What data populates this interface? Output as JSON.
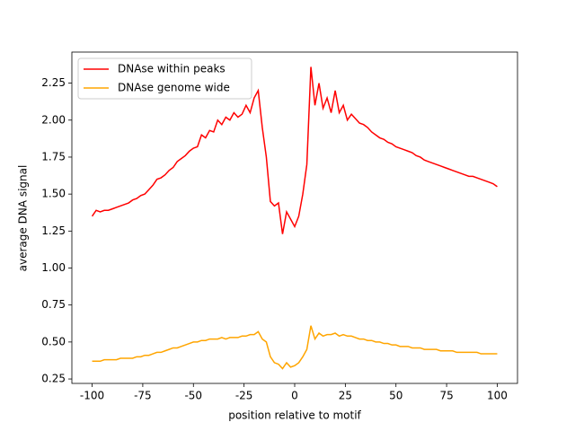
{
  "chart_data": {
    "type": "line",
    "xlabel": "position relative to motif",
    "ylabel": "average DNA signal",
    "x": [
      -100,
      -98,
      -96,
      -94,
      -92,
      -90,
      -88,
      -86,
      -84,
      -82,
      -80,
      -78,
      -76,
      -74,
      -72,
      -70,
      -68,
      -66,
      -64,
      -62,
      -60,
      -58,
      -56,
      -54,
      -52,
      -50,
      -48,
      -46,
      -44,
      -42,
      -40,
      -38,
      -36,
      -34,
      -32,
      -30,
      -28,
      -26,
      -24,
      -22,
      -20,
      -18,
      -16,
      -14,
      -12,
      -10,
      -8,
      -6,
      -4,
      -2,
      0,
      2,
      4,
      6,
      8,
      10,
      12,
      14,
      16,
      18,
      20,
      22,
      24,
      26,
      28,
      30,
      32,
      34,
      36,
      38,
      40,
      42,
      44,
      46,
      48,
      50,
      52,
      54,
      56,
      58,
      60,
      62,
      64,
      66,
      68,
      70,
      72,
      74,
      76,
      78,
      80,
      82,
      84,
      86,
      88,
      90,
      92,
      94,
      96,
      98,
      100
    ],
    "series": [
      {
        "name": "DNAse within peaks",
        "color": "#ff0000",
        "values": [
          1.35,
          1.39,
          1.38,
          1.39,
          1.39,
          1.4,
          1.41,
          1.42,
          1.43,
          1.44,
          1.46,
          1.47,
          1.49,
          1.5,
          1.53,
          1.56,
          1.6,
          1.61,
          1.63,
          1.66,
          1.68,
          1.72,
          1.74,
          1.76,
          1.79,
          1.81,
          1.82,
          1.9,
          1.88,
          1.93,
          1.92,
          2.0,
          1.97,
          2.02,
          2.0,
          2.05,
          2.02,
          2.04,
          2.1,
          2.05,
          2.15,
          2.2,
          1.95,
          1.75,
          1.45,
          1.42,
          1.44,
          1.23,
          1.38,
          1.33,
          1.28,
          1.35,
          1.5,
          1.7,
          2.36,
          2.1,
          2.25,
          2.08,
          2.15,
          2.05,
          2.2,
          2.05,
          2.1,
          2.0,
          2.04,
          2.01,
          1.98,
          1.97,
          1.95,
          1.92,
          1.9,
          1.88,
          1.87,
          1.85,
          1.84,
          1.82,
          1.81,
          1.8,
          1.79,
          1.78,
          1.76,
          1.75,
          1.73,
          1.72,
          1.71,
          1.7,
          1.69,
          1.68,
          1.67,
          1.66,
          1.65,
          1.64,
          1.63,
          1.62,
          1.62,
          1.61,
          1.6,
          1.59,
          1.58,
          1.57,
          1.55
        ]
      },
      {
        "name": "DNAse genome wide",
        "color": "#ffa500",
        "values": [
          0.37,
          0.37,
          0.37,
          0.38,
          0.38,
          0.38,
          0.38,
          0.39,
          0.39,
          0.39,
          0.39,
          0.4,
          0.4,
          0.41,
          0.41,
          0.42,
          0.43,
          0.43,
          0.44,
          0.45,
          0.46,
          0.46,
          0.47,
          0.48,
          0.49,
          0.5,
          0.5,
          0.51,
          0.51,
          0.52,
          0.52,
          0.52,
          0.53,
          0.52,
          0.53,
          0.53,
          0.53,
          0.54,
          0.54,
          0.55,
          0.55,
          0.57,
          0.52,
          0.5,
          0.4,
          0.36,
          0.35,
          0.32,
          0.36,
          0.33,
          0.34,
          0.36,
          0.4,
          0.45,
          0.61,
          0.52,
          0.56,
          0.54,
          0.55,
          0.55,
          0.56,
          0.54,
          0.55,
          0.54,
          0.54,
          0.53,
          0.52,
          0.52,
          0.51,
          0.51,
          0.5,
          0.5,
          0.49,
          0.49,
          0.48,
          0.48,
          0.47,
          0.47,
          0.47,
          0.46,
          0.46,
          0.46,
          0.45,
          0.45,
          0.45,
          0.45,
          0.44,
          0.44,
          0.44,
          0.44,
          0.43,
          0.43,
          0.43,
          0.43,
          0.43,
          0.43,
          0.42,
          0.42,
          0.42,
          0.42,
          0.42
        ]
      }
    ],
    "xlim": [
      -110,
      110
    ],
    "ylim": [
      0.22,
      2.46
    ],
    "xticks": [
      -100,
      -75,
      -50,
      -25,
      0,
      25,
      50,
      75,
      100
    ],
    "yticks": [
      0.25,
      {
        "value": 0.5,
        "label": "0.50"
      },
      0.75,
      {
        "value": 1.0,
        "label": "1.00"
      },
      1.25,
      {
        "value": 1.5,
        "label": "1.50"
      },
      1.75,
      {
        "value": 2.0,
        "label": "2.00"
      },
      2.25
    ],
    "legend": "upper left"
  }
}
